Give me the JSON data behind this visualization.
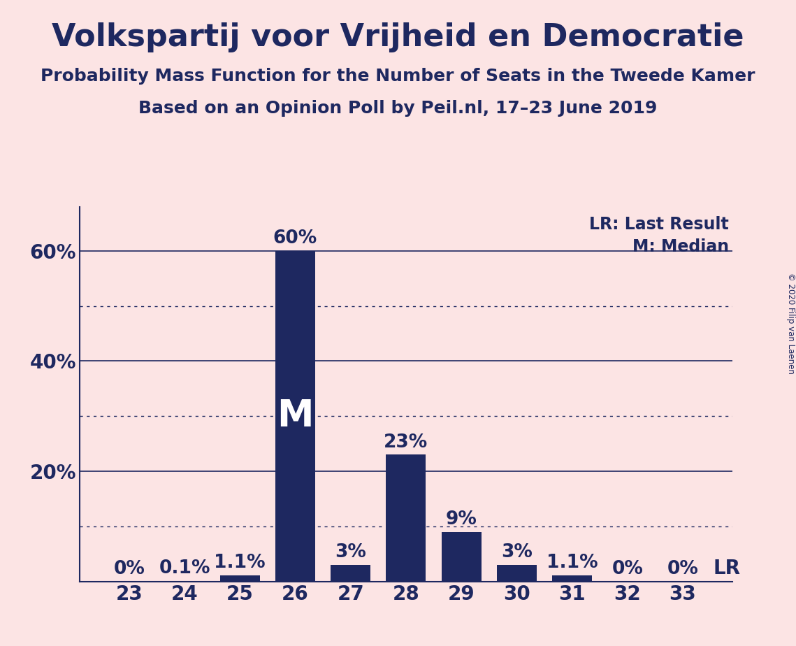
{
  "title": "Volkspartij voor Vrijheid en Democratie",
  "subtitle1": "Probability Mass Function for the Number of Seats in the Tweede Kamer",
  "subtitle2": "Based on an Opinion Poll by Peil.nl, 17–23 June 2019",
  "copyright": "© 2020 Filip van Laenen",
  "categories": [
    23,
    24,
    25,
    26,
    27,
    28,
    29,
    30,
    31,
    32,
    33
  ],
  "values": [
    0.0,
    0.1,
    1.1,
    60.0,
    3.0,
    23.0,
    9.0,
    3.0,
    1.1,
    0.0,
    0.0
  ],
  "labels": [
    "0%",
    "0.1%",
    "1.1%",
    "60%",
    "3%",
    "23%",
    "9%",
    "3%",
    "1.1%",
    "0%",
    "0%"
  ],
  "bar_color": "#1e2860",
  "background_color": "#fce4e4",
  "median_bar": 26,
  "lr_bar": 33,
  "median_label": "M",
  "lr_label": "LR",
  "legend_lr": "LR: Last Result",
  "legend_m": "M: Median",
  "dotted_yticks": [
    10,
    30,
    50
  ],
  "solid_yticks": [
    20,
    40,
    60
  ],
  "ylim": [
    0,
    68
  ],
  "title_fontsize": 32,
  "subtitle_fontsize": 18,
  "tick_fontsize": 20,
  "bar_label_fontsize": 19,
  "legend_fontsize": 17,
  "median_fontsize": 38
}
